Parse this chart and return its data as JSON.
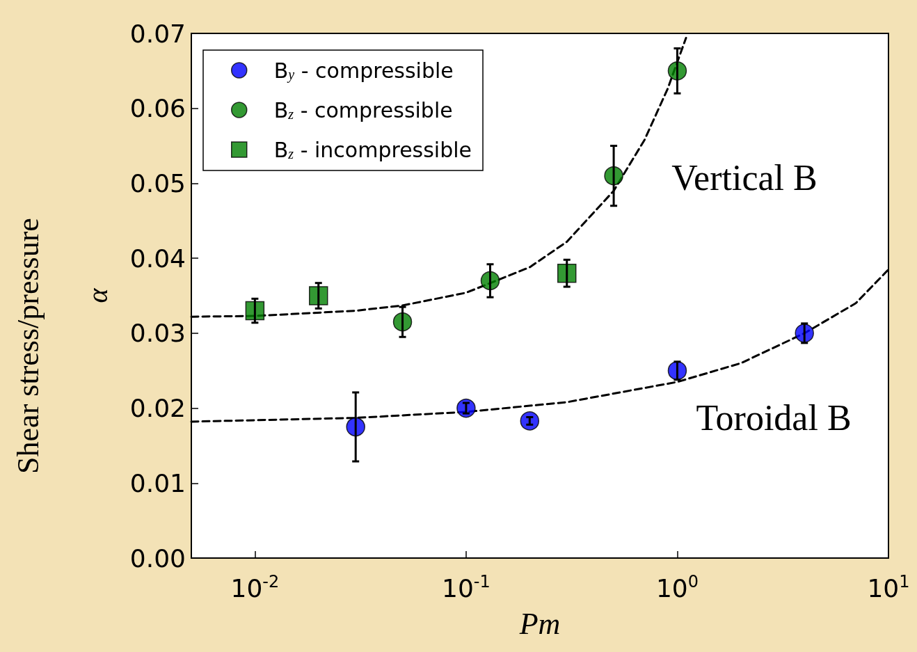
{
  "chart_data": {
    "type": "scatter",
    "xlabel": "Pm",
    "ylabel": "α",
    "log": "x",
    "xlim": [
      0.005,
      10
    ],
    "xticks": [
      {
        "value": 0.01,
        "label": "10$^{-2}$"
      },
      {
        "value": 0.1,
        "label": "10$^{-1}$"
      },
      {
        "value": 1,
        "label": "10$^{0}$"
      },
      {
        "value": 10,
        "label": "10$^{1}$"
      }
    ],
    "ylim": [
      0,
      0.07
    ],
    "yticks": [
      {
        "value": 0,
        "label": "0.00"
      },
      {
        "value": 0.01,
        "label": "0.01"
      },
      {
        "value": 0.02,
        "label": "0.02"
      },
      {
        "value": 0.03,
        "label": "0.03"
      },
      {
        "value": 0.04,
        "label": "0.04"
      },
      {
        "value": 0.05,
        "label": "0.05"
      },
      {
        "value": 0.06,
        "label": "0.06"
      },
      {
        "value": 0.07,
        "label": "0.07"
      }
    ],
    "grid": false,
    "legend": "top left",
    "series": [
      {
        "name": "B$_{y}$ - compressible",
        "marker": "circle",
        "color": "#0000ff",
        "x": [
          0.03,
          0.1,
          0.2,
          1,
          4
        ],
        "values": [
          0.0175,
          0.02,
          0.0183,
          0.025,
          0.03
        ],
        "errors": [
          0.0046,
          0.0007,
          0.0005,
          0.0012,
          0.0013
        ]
      },
      {
        "name": "B$_{z}$ - compressible",
        "marker": "circle",
        "color": "#007f00",
        "x": [
          0.05,
          0.13,
          0.5,
          1
        ],
        "values": [
          0.0315,
          0.037,
          0.051,
          0.065
        ],
        "errors": [
          0.002,
          0.0022,
          0.004,
          0.003
        ]
      },
      {
        "name": "B$_{z}$ - incompressible",
        "marker": "square",
        "color": "#007f00",
        "x": [
          0.01,
          0.02,
          0.3
        ],
        "values": [
          0.033,
          0.035,
          0.038
        ],
        "errors": [
          0.0016,
          0.0017,
          0.0018
        ]
      },
      {
        "type": "line",
        "line_style": "dashed",
        "marker": "none",
        "color": "#000000",
        "x": [
          0.005,
          0.01,
          0.03,
          0.05,
          0.1,
          0.2,
          0.3,
          0.5,
          0.7,
          0.9,
          1.1
        ],
        "values": [
          0.0322,
          0.0323,
          0.033,
          0.0337,
          0.0354,
          0.0388,
          0.0422,
          0.049,
          0.0558,
          0.0626,
          0.0694
        ]
      },
      {
        "type": "line",
        "line_style": "dashed",
        "marker": "none",
        "color": "#000000",
        "x": [
          0.005,
          0.03,
          0.1,
          0.3,
          1,
          2,
          4,
          7,
          10
        ],
        "values": [
          0.0182,
          0.0187,
          0.0195,
          0.0208,
          0.0235,
          0.026,
          0.03,
          0.034,
          0.0385
        ]
      }
    ],
    "annotations": [
      "Vertical B",
      "Toroidal B",
      "Shear stress/pressure"
    ]
  }
}
